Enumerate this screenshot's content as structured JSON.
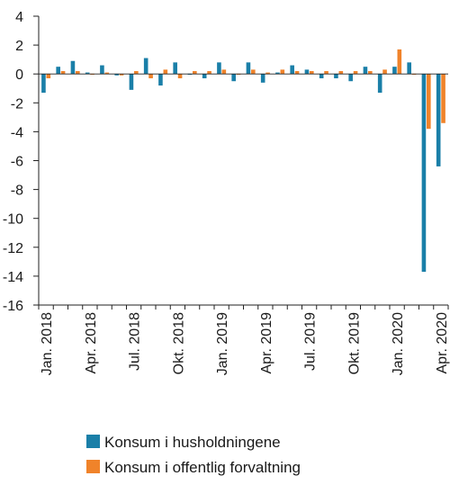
{
  "chart_data": {
    "type": "bar",
    "title": "",
    "xlabel": "",
    "ylabel": "",
    "ylim": [
      -16,
      4
    ],
    "yticks": [
      4,
      2,
      0,
      -2,
      -4,
      -6,
      -8,
      -10,
      -12,
      -14,
      -16
    ],
    "grid": false,
    "legend_position": "bottom",
    "categories": [
      "Jan. 2018",
      "Feb. 2018",
      "Mar. 2018",
      "Apr. 2018",
      "Mai 2018",
      "Jun. 2018",
      "Jul. 2018",
      "Aug. 2018",
      "Sep. 2018",
      "Okt. 2018",
      "Nov. 2018",
      "Des. 2018",
      "Jan. 2019",
      "Feb. 2019",
      "Mar. 2019",
      "Apr. 2019",
      "Mai 2019",
      "Jun. 2019",
      "Jul. 2019",
      "Aug. 2019",
      "Sep. 2019",
      "Okt. 2019",
      "Nov. 2019",
      "Des. 2019",
      "Jan. 2020",
      "Feb. 2020",
      "Mar. 2020",
      "Apr. 2020"
    ],
    "x_tick_labels": [
      "Jan. 2018",
      "Apr. 2018",
      "Jul. 2018",
      "Okt. 2018",
      "Jan. 2019",
      "Apr. 2019",
      "Jul. 2019",
      "Okt. 2019",
      "Jan. 2020",
      "Apr. 2020"
    ],
    "x_tick_label_indices": [
      0,
      3,
      6,
      9,
      12,
      15,
      18,
      21,
      24,
      27
    ],
    "series": [
      {
        "name": "Konsum i husholdningene",
        "color": "#1a7fa8",
        "values": [
          -1.3,
          0.5,
          0.9,
          0.1,
          0.6,
          -0.1,
          -1.1,
          1.1,
          -0.8,
          0.8,
          0.0,
          -0.3,
          0.8,
          -0.5,
          0.8,
          -0.6,
          0.1,
          0.6,
          0.3,
          -0.3,
          -0.3,
          -0.5,
          0.5,
          -1.3,
          0.5,
          0.8,
          -13.7,
          -6.4
        ]
      },
      {
        "name": "Konsum i offentlig forvaltning",
        "color": "#f0832a",
        "values": [
          -0.3,
          0.2,
          0.2,
          0.0,
          0.1,
          -0.1,
          0.2,
          -0.3,
          0.3,
          -0.3,
          0.2,
          0.2,
          0.3,
          0.0,
          0.3,
          0.1,
          0.3,
          0.2,
          0.2,
          0.2,
          0.2,
          0.2,
          0.2,
          0.3,
          1.7,
          0.0,
          -3.8,
          -3.4
        ]
      }
    ]
  }
}
